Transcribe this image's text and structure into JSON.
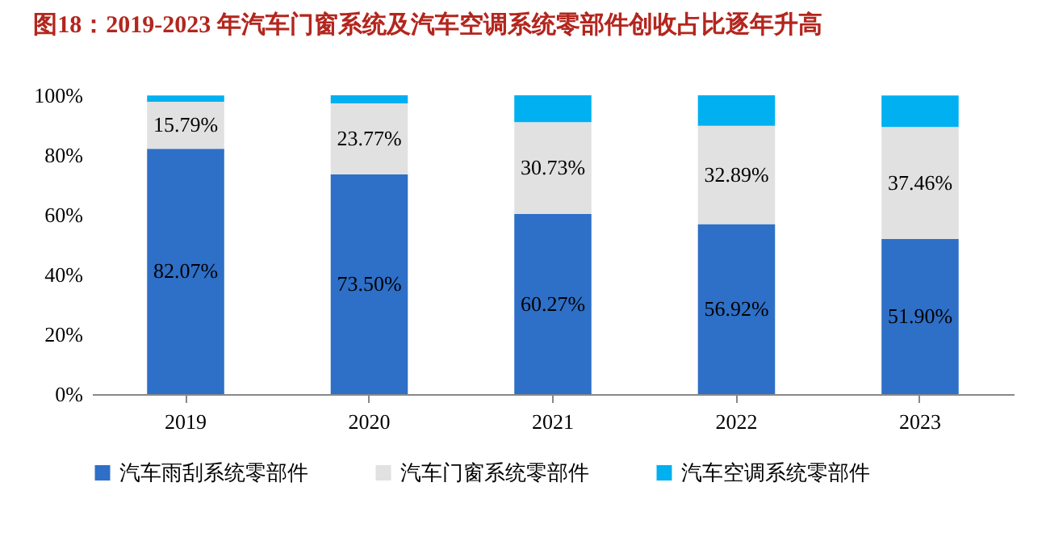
{
  "chart_data": {
    "type": "bar",
    "title": "图18：2019-2023 年汽车门窗系统及汽车空调系统零部件创收占比逐年升高",
    "categories": [
      "2019",
      "2020",
      "2021",
      "2022",
      "2023"
    ],
    "stacked": true,
    "series": [
      {
        "name": "汽车雨刮系统零部件",
        "color": "#2e6fc7",
        "values": [
          82.07,
          73.5,
          60.27,
          56.92,
          51.9
        ],
        "value_labels": [
          "82.07%",
          "73.50%",
          "60.27%",
          "56.92%",
          "51.90%"
        ]
      },
      {
        "name": "汽车门窗系统零部件",
        "color": "#e1e1e1",
        "values": [
          15.79,
          23.77,
          30.73,
          32.89,
          37.46
        ],
        "value_labels": [
          "15.79%",
          "23.77%",
          "30.73%",
          "32.89%",
          "37.46%"
        ]
      },
      {
        "name": "汽车空调系统零部件",
        "color": "#00b0f0",
        "values": [
          2.1,
          2.7,
          9.0,
          10.2,
          10.6
        ]
      }
    ],
    "ylim": [
      0,
      100
    ],
    "yticks": [
      {
        "value": 0,
        "label": "0%"
      },
      {
        "value": 20,
        "label": "20%"
      },
      {
        "value": 40,
        "label": "40%"
      },
      {
        "value": 60,
        "label": "60%"
      },
      {
        "value": 80,
        "label": "80%"
      },
      {
        "value": 100,
        "label": "100%"
      }
    ],
    "grid": false,
    "legend": "bottom"
  }
}
